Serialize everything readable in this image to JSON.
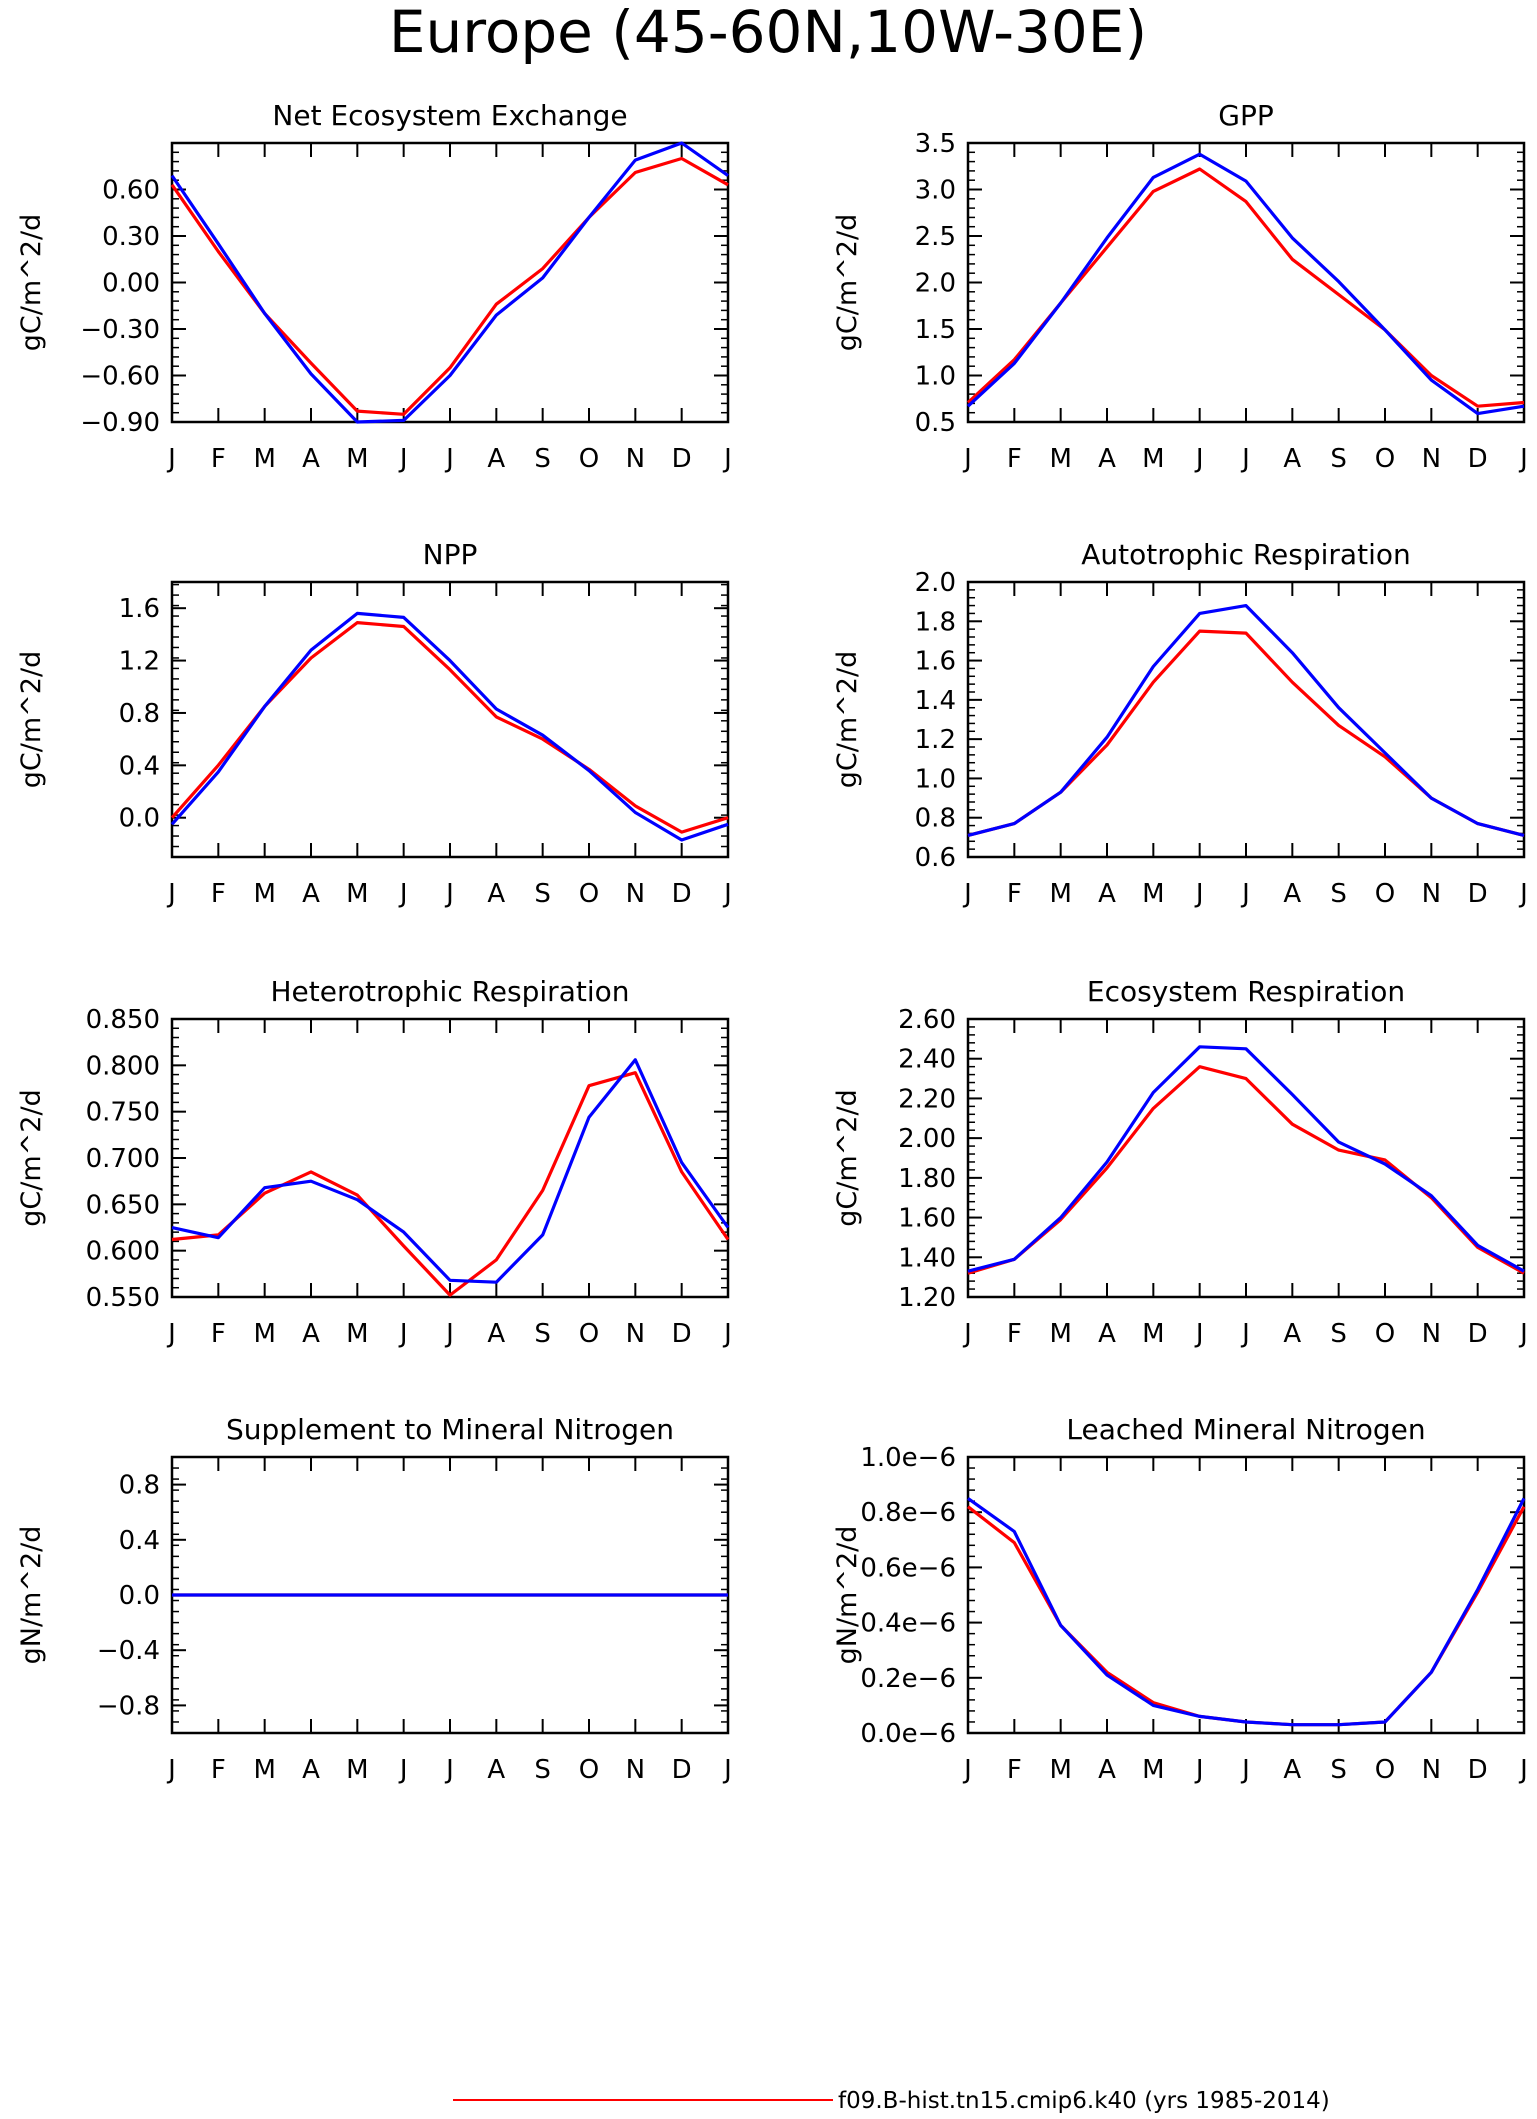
{
  "figure": {
    "title": "Europe (45-60N,10W-30E)",
    "months": [
      "J",
      "F",
      "M",
      "A",
      "M",
      "J",
      "J",
      "A",
      "S",
      "O",
      "N",
      "D",
      "J"
    ],
    "series_colors": {
      "red": "#ff0000",
      "blue": "#0000ff"
    },
    "legend": [
      {
        "label": "f09.B-hist.tn15.cmip6.k40 (yrs 1985-2014)",
        "color": "#ff0000"
      }
    ]
  },
  "chart_data": [
    {
      "type": "line",
      "title": "Net Ecosystem Exchange",
      "ylabel": "gC/m^2/d",
      "ylim": [
        -0.9,
        0.9
      ],
      "yticks": [
        -0.9,
        -0.6,
        -0.3,
        0.0,
        0.3,
        0.6
      ],
      "ytick_labels": [
        "-0.90",
        "-0.60",
        "-0.30",
        "0.00",
        "0.30",
        "0.60"
      ],
      "x": [
        "J",
        "F",
        "M",
        "A",
        "M",
        "J",
        "J",
        "A",
        "S",
        "O",
        "N",
        "D",
        "J"
      ],
      "series": [
        {
          "color": "#ff0000",
          "values": [
            0.63,
            0.2,
            -0.2,
            -0.52,
            -0.83,
            -0.85,
            -0.55,
            -0.14,
            0.09,
            0.42,
            0.71,
            0.8,
            0.63
          ]
        },
        {
          "color": "#0000ff",
          "values": [
            0.69,
            0.25,
            -0.2,
            -0.59,
            -0.9,
            -0.89,
            -0.6,
            -0.21,
            0.03,
            0.42,
            0.79,
            0.9,
            0.69
          ]
        }
      ]
    },
    {
      "type": "line",
      "title": "GPP",
      "ylabel": "gC/m^2/d",
      "ylim": [
        0.5,
        3.5
      ],
      "yticks": [
        0.5,
        1.0,
        1.5,
        2.0,
        2.5,
        3.0,
        3.5
      ],
      "ytick_labels": [
        "0.5",
        "1.0",
        "1.5",
        "2.0",
        "2.5",
        "3.0",
        "3.5"
      ],
      "x": [
        "J",
        "F",
        "M",
        "A",
        "M",
        "J",
        "J",
        "A",
        "S",
        "O",
        "N",
        "D",
        "J"
      ],
      "series": [
        {
          "color": "#ff0000",
          "values": [
            0.71,
            1.17,
            1.78,
            2.38,
            2.98,
            3.22,
            2.87,
            2.25,
            1.87,
            1.49,
            1.0,
            0.67,
            0.71
          ]
        },
        {
          "color": "#0000ff",
          "values": [
            0.67,
            1.13,
            1.78,
            2.48,
            3.13,
            3.38,
            3.09,
            2.48,
            2.01,
            1.49,
            0.95,
            0.59,
            0.67
          ]
        }
      ]
    },
    {
      "type": "line",
      "title": "NPP",
      "ylabel": "gC/m^2/d",
      "ylim": [
        -0.3,
        1.8
      ],
      "yticks": [
        0.0,
        0.4,
        0.8,
        1.2,
        1.6
      ],
      "ytick_labels": [
        "0.0",
        "0.4",
        "0.8",
        "1.2",
        "1.6"
      ],
      "x": [
        "J",
        "F",
        "M",
        "A",
        "M",
        "J",
        "J",
        "A",
        "S",
        "O",
        "N",
        "D",
        "J"
      ],
      "series": [
        {
          "color": "#ff0000",
          "values": [
            0.0,
            0.4,
            0.85,
            1.22,
            1.49,
            1.46,
            1.13,
            0.77,
            0.6,
            0.37,
            0.09,
            -0.11,
            0.0
          ]
        },
        {
          "color": "#0000ff",
          "values": [
            -0.05,
            0.35,
            0.85,
            1.28,
            1.56,
            1.53,
            1.2,
            0.83,
            0.63,
            0.36,
            0.04,
            -0.17,
            -0.05
          ]
        }
      ]
    },
    {
      "type": "line",
      "title": "Autotrophic Respiration",
      "ylabel": "gC/m^2/d",
      "ylim": [
        0.6,
        2.0
      ],
      "yticks": [
        0.6,
        0.8,
        1.0,
        1.2,
        1.4,
        1.6,
        1.8,
        2.0
      ],
      "ytick_labels": [
        "0.6",
        "0.8",
        "1.0",
        "1.2",
        "1.4",
        "1.6",
        "1.8",
        "2.0"
      ],
      "x": [
        "J",
        "F",
        "M",
        "A",
        "M",
        "J",
        "J",
        "A",
        "S",
        "O",
        "N",
        "D",
        "J"
      ],
      "series": [
        {
          "color": "#ff0000",
          "values": [
            0.71,
            0.77,
            0.93,
            1.17,
            1.49,
            1.75,
            1.74,
            1.49,
            1.27,
            1.11,
            0.9,
            0.77,
            0.71
          ]
        },
        {
          "color": "#0000ff",
          "values": [
            0.71,
            0.77,
            0.93,
            1.21,
            1.57,
            1.84,
            1.88,
            1.64,
            1.36,
            1.13,
            0.9,
            0.77,
            0.71
          ]
        }
      ]
    },
    {
      "type": "line",
      "title": "Heterotrophic Respiration",
      "ylabel": "gC/m^2/d",
      "ylim": [
        0.55,
        0.85
      ],
      "yticks": [
        0.55,
        0.6,
        0.65,
        0.7,
        0.75,
        0.8,
        0.85
      ],
      "ytick_labels": [
        "0.550",
        "0.600",
        "0.650",
        "0.700",
        "0.750",
        "0.800",
        "0.850"
      ],
      "x": [
        "J",
        "F",
        "M",
        "A",
        "M",
        "J",
        "J",
        "A",
        "S",
        "O",
        "N",
        "D",
        "J"
      ],
      "series": [
        {
          "color": "#ff0000",
          "values": [
            0.612,
            0.617,
            0.662,
            0.685,
            0.66,
            0.605,
            0.552,
            0.59,
            0.665,
            0.778,
            0.792,
            0.685,
            0.612
          ]
        },
        {
          "color": "#0000ff",
          "values": [
            0.625,
            0.614,
            0.668,
            0.675,
            0.655,
            0.62,
            0.568,
            0.566,
            0.617,
            0.744,
            0.806,
            0.695,
            0.625
          ]
        }
      ]
    },
    {
      "type": "line",
      "title": "Ecosystem Respiration",
      "ylabel": "gC/m^2/d",
      "ylim": [
        1.2,
        2.6
      ],
      "yticks": [
        1.2,
        1.4,
        1.6,
        1.8,
        2.0,
        2.2,
        2.4,
        2.6
      ],
      "ytick_labels": [
        "1.20",
        "1.40",
        "1.60",
        "1.80",
        "2.00",
        "2.20",
        "2.40",
        "2.60"
      ],
      "x": [
        "J",
        "F",
        "M",
        "A",
        "M",
        "J",
        "J",
        "A",
        "S",
        "O",
        "N",
        "D",
        "J"
      ],
      "series": [
        {
          "color": "#ff0000",
          "values": [
            1.32,
            1.39,
            1.59,
            1.85,
            2.15,
            2.36,
            2.3,
            2.07,
            1.94,
            1.89,
            1.7,
            1.45,
            1.32
          ]
        },
        {
          "color": "#0000ff",
          "values": [
            1.33,
            1.39,
            1.6,
            1.88,
            2.23,
            2.46,
            2.45,
            2.22,
            1.98,
            1.87,
            1.71,
            1.46,
            1.33
          ]
        }
      ]
    },
    {
      "type": "line",
      "title": "Supplement to Mineral Nitrogen",
      "ylabel": "gN/m^2/d",
      "ylim": [
        -1.0,
        1.0
      ],
      "yticks": [
        -0.8,
        -0.4,
        0.0,
        0.4,
        0.8
      ],
      "ytick_labels": [
        "-0.8",
        "-0.4",
        "0.0",
        "0.4",
        "0.8"
      ],
      "x": [
        "J",
        "F",
        "M",
        "A",
        "M",
        "J",
        "J",
        "A",
        "S",
        "O",
        "N",
        "D",
        "J"
      ],
      "series": [
        {
          "color": "#ff0000",
          "values": [
            0,
            0,
            0,
            0,
            0,
            0,
            0,
            0,
            0,
            0,
            0,
            0,
            0
          ]
        },
        {
          "color": "#0000ff",
          "values": [
            0,
            0,
            0,
            0,
            0,
            0,
            0,
            0,
            0,
            0,
            0,
            0,
            0
          ]
        }
      ]
    },
    {
      "type": "line",
      "title": "Leached Mineral Nitrogen",
      "ylabel": "gN/m^2/d",
      "ylim": [
        0.0,
        1e-06
      ],
      "yticks": [
        0.0,
        2e-07,
        4e-07,
        6e-07,
        8e-07,
        1e-06
      ],
      "ytick_labels": [
        "0.0e-6",
        "0.2e-6",
        "0.4e-6",
        "0.6e-6",
        "0.8e-6",
        "1.0e-6"
      ],
      "x": [
        "J",
        "F",
        "M",
        "A",
        "M",
        "J",
        "J",
        "A",
        "S",
        "O",
        "N",
        "D",
        "J"
      ],
      "series": [
        {
          "color": "#ff0000",
          "values": [
            8.2e-07,
            6.9e-07,
            3.9e-07,
            2.2e-07,
            1.1e-07,
            6e-08,
            4e-08,
            3e-08,
            3e-08,
            4e-08,
            2.2e-07,
            5.1e-07,
            8.2e-07
          ]
        },
        {
          "color": "#0000ff",
          "values": [
            8.5e-07,
            7.3e-07,
            3.9e-07,
            2.1e-07,
            1e-07,
            6e-08,
            4e-08,
            3e-08,
            3e-08,
            4e-08,
            2.2e-07,
            5.2e-07,
            8.5e-07
          ]
        }
      ]
    }
  ]
}
